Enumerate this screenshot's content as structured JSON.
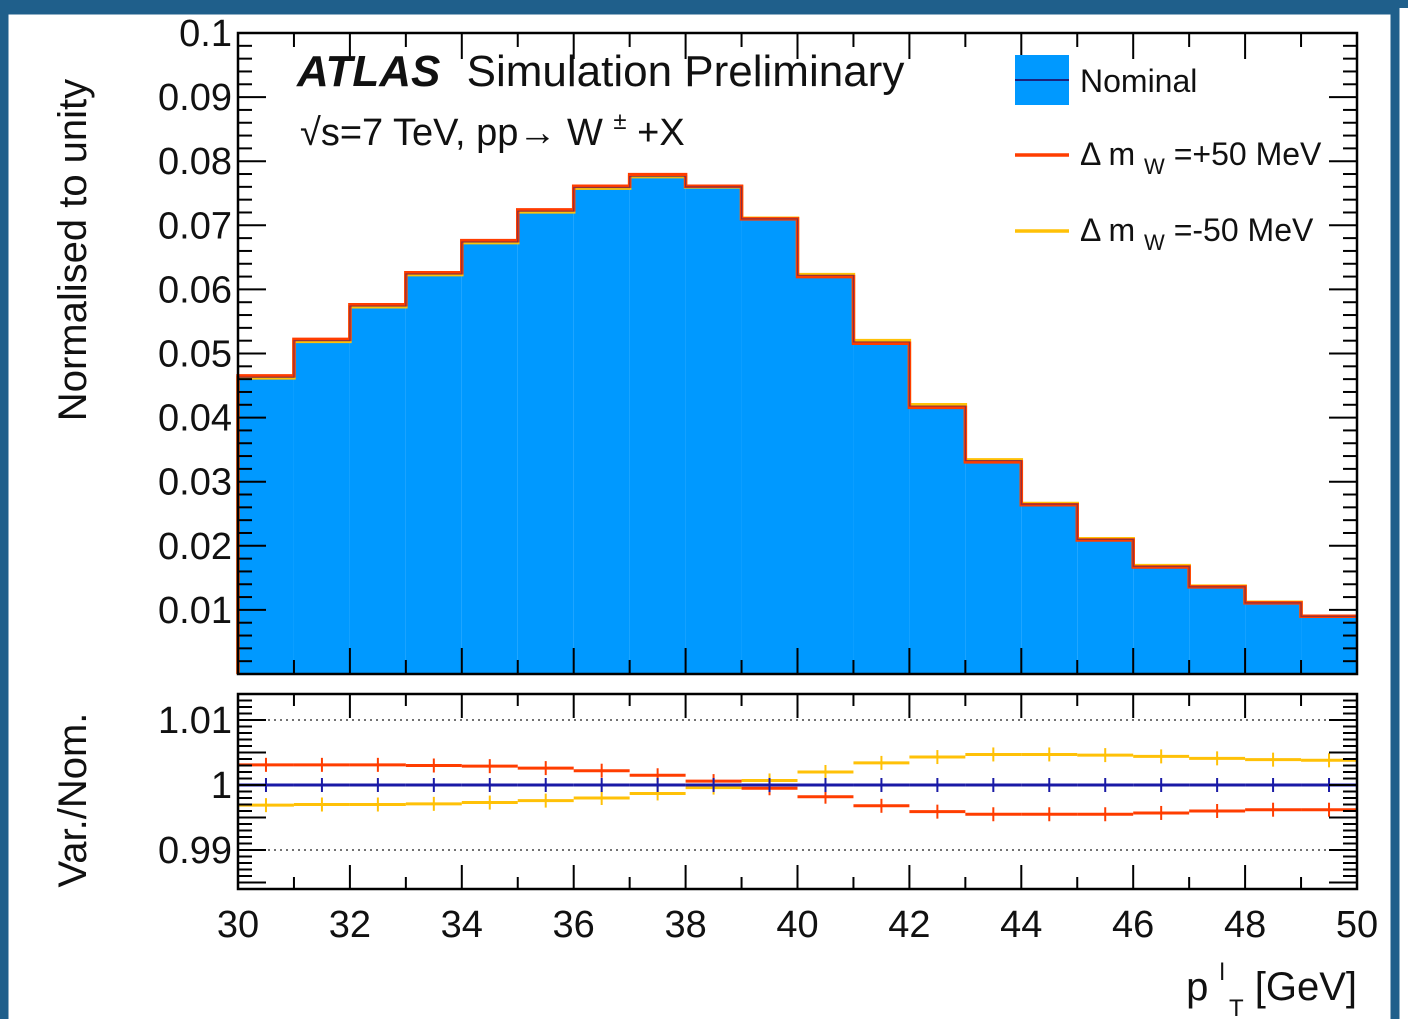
{
  "frame_color": "#1f5f8b",
  "chart_data": [
    {
      "panel": "main",
      "type": "histogram",
      "xlim": [
        30,
        50
      ],
      "ylim": [
        0,
        0.1
      ],
      "yticks": [
        "0.01",
        "0.02",
        "0.03",
        "0.04",
        "0.05",
        "0.06",
        "0.07",
        "0.08",
        "0.09",
        "0.1"
      ],
      "ylabel": "Normalised to unity",
      "annotation_brand": "ATLAS",
      "annotation_rest": "Simulation Preliminary",
      "annotation_line2_parts": [
        "√s=7 TeV, pp→ W",
        "±",
        "+X"
      ],
      "bin_edges": [
        30,
        31,
        32,
        33,
        34,
        35,
        36,
        37,
        38,
        39,
        40,
        41,
        42,
        43,
        44,
        45,
        46,
        47,
        48,
        49,
        50
      ],
      "series": [
        {
          "name": "Nominal",
          "style": "filled",
          "color": "#0099ff",
          "line_color": "#1a237e",
          "values": [
            0.0463,
            0.052,
            0.0574,
            0.0624,
            0.0674,
            0.0722,
            0.0759,
            0.0776,
            0.076,
            0.071,
            0.0622,
            0.0518,
            0.0418,
            0.0333,
            0.0265,
            0.021,
            0.0168,
            0.0136,
            0.0111,
            0.009
          ]
        },
        {
          "name": "Δ m_W=+50 MeV",
          "legend_parts": [
            "Δ m",
            "W",
            "=+50 MeV"
          ],
          "style": "line",
          "color": "#ff3d00",
          "values": [
            0.0465,
            0.0522,
            0.0576,
            0.0626,
            0.0676,
            0.0724,
            0.0761,
            0.0779,
            0.0761,
            0.071,
            0.062,
            0.0516,
            0.0416,
            0.0331,
            0.0264,
            0.0209,
            0.0167,
            0.0136,
            0.0111,
            0.009
          ]
        },
        {
          "name": "Δ m_W=-50 MeV",
          "legend_parts": [
            "Δ m",
            "W",
            "=-50 MeV"
          ],
          "style": "line",
          "color": "#ffc107",
          "values": [
            0.0462,
            0.0519,
            0.0573,
            0.0623,
            0.0673,
            0.0721,
            0.0758,
            0.0776,
            0.076,
            0.0711,
            0.0623,
            0.052,
            0.042,
            0.0334,
            0.0266,
            0.0211,
            0.0169,
            0.0137,
            0.0112,
            0.009
          ]
        }
      ],
      "legend": [
        "Nominal",
        "Δ m_W=+50 MeV",
        "Δ m_W=-50 MeV"
      ]
    },
    {
      "panel": "ratio",
      "type": "ratio",
      "xlim": [
        30,
        50
      ],
      "ylim": [
        0.984,
        1.014
      ],
      "yticks": [
        "0.99",
        "1",
        "1.01"
      ],
      "reference_lines": [
        0.99,
        1.01
      ],
      "ylabel": "Var./Nom.",
      "xticks": [
        "30",
        "32",
        "34",
        "36",
        "38",
        "40",
        "42",
        "44",
        "46",
        "48",
        "50"
      ],
      "xlabel_base": "p",
      "xlabel_sup": "l",
      "xlabel_sub": "T",
      "xlabel_unit": " [GeV]",
      "series": [
        {
          "name": "Nominal",
          "color": "#1a1aa6",
          "values": [
            1.0,
            1.0,
            1.0,
            1.0,
            1.0,
            1.0,
            1.0,
            1.0,
            1.0,
            1.0,
            1.0,
            1.0,
            1.0,
            1.0,
            1.0,
            1.0,
            1.0,
            1.0,
            1.0,
            1.0
          ]
        },
        {
          "name": "Δ m_W=+50 MeV",
          "color": "#ff3d00",
          "values": [
            1.0031,
            1.0031,
            1.0031,
            1.003,
            1.0029,
            1.0026,
            1.0022,
            1.0015,
            1.0006,
            0.9995,
            0.9982,
            0.9968,
            0.9959,
            0.9955,
            0.9955,
            0.9955,
            0.9957,
            0.996,
            0.9962,
            0.9962
          ]
        },
        {
          "name": "Δ m_W=-50 MeV",
          "color": "#ffc107",
          "values": [
            0.9969,
            0.997,
            0.997,
            0.9971,
            0.9973,
            0.9976,
            0.998,
            0.9987,
            0.9996,
            1.0007,
            1.002,
            1.0034,
            1.0043,
            1.0047,
            1.0047,
            1.0046,
            1.0044,
            1.0041,
            1.0039,
            1.0038
          ]
        }
      ]
    }
  ]
}
